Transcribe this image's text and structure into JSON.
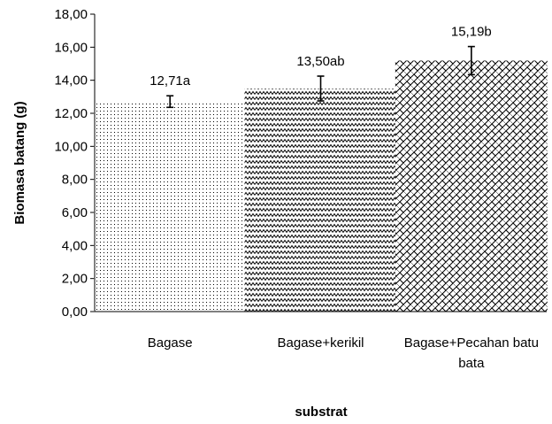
{
  "chart_data": {
    "type": "bar",
    "title": "",
    "xlabel": "substrat",
    "ylabel": "Biomasa batang (g)",
    "ylim": [
      0,
      18
    ],
    "yticks": [
      "0,00",
      "2,00",
      "4,00",
      "6,00",
      "8,00",
      "10,00",
      "12,00",
      "14,00",
      "16,00",
      "18,00"
    ],
    "grid": false,
    "legend": "none",
    "categories": [
      [
        "Bagase"
      ],
      [
        "Bagase+kerikil"
      ],
      [
        "Bagase+Pecahan batu",
        "bata"
      ]
    ],
    "values": [
      12.71,
      13.5,
      15.19
    ],
    "error": [
      0.35,
      0.75,
      0.85
    ],
    "data_labels": [
      "12,71a",
      "13,50ab",
      "15,19b"
    ],
    "fill_patterns": [
      "dots",
      "zigzag",
      "diagonal-weave"
    ]
  }
}
